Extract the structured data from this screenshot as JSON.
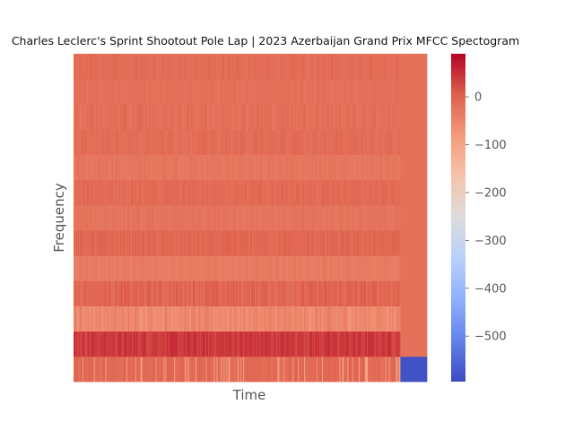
{
  "chart_data": {
    "type": "heatmap",
    "title": "Charles Leclerc's Sprint Shootout Pole Lap | 2023 Azerbaijan Grand Prix MFCC Spectogram",
    "xlabel": "Time",
    "ylabel": "Frequency",
    "colormap": "coolwarm",
    "colorbar": {
      "min": -595,
      "max": 90,
      "ticks": [
        0,
        -100,
        -200,
        -300,
        -400,
        -500
      ],
      "tick_labels": [
        "0",
        "−100",
        "−200",
        "−300",
        "−400",
        "−500"
      ]
    },
    "n_time_frames": 400,
    "active_frames": 370,
    "rows": [
      {
        "coefficient": 1,
        "mean": -10,
        "variation": 12,
        "trailing": -585
      },
      {
        "coefficient": 2,
        "mean": 40,
        "variation": 18,
        "trailing": -20
      },
      {
        "coefficient": 3,
        "mean": -55,
        "variation": 20,
        "trailing": -20
      },
      {
        "coefficient": 4,
        "mean": -5,
        "variation": 18,
        "trailing": -20
      },
      {
        "coefficient": 5,
        "mean": -35,
        "variation": 8,
        "trailing": -20
      },
      {
        "coefficient": 6,
        "mean": -8,
        "variation": 12,
        "trailing": -20
      },
      {
        "coefficient": 7,
        "mean": -25,
        "variation": 8,
        "trailing": -20
      },
      {
        "coefficient": 8,
        "mean": -12,
        "variation": 10,
        "trailing": -20
      },
      {
        "coefficient": 9,
        "mean": -28,
        "variation": 8,
        "trailing": -20
      },
      {
        "coefficient": 10,
        "mean": -15,
        "variation": 10,
        "trailing": -20
      },
      {
        "coefficient": 11,
        "mean": -18,
        "variation": 12,
        "trailing": -20
      },
      {
        "coefficient": 12,
        "mean": -20,
        "variation": 6,
        "trailing": -20
      },
      {
        "coefficient": 13,
        "mean": -15,
        "variation": 10,
        "trailing": -20
      }
    ]
  }
}
